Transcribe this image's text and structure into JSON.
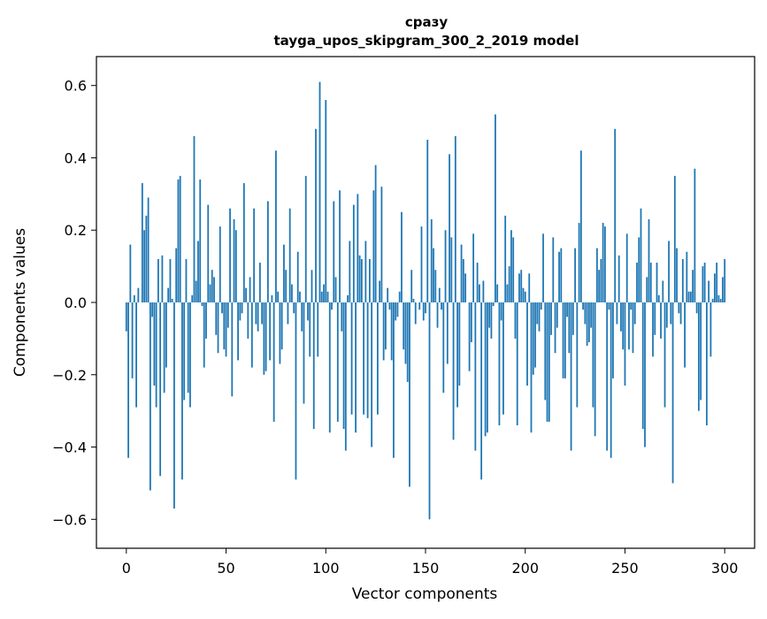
{
  "chart_data": {
    "type": "bar",
    "title_line1": "сразу",
    "title_line2": "tayga_upos_skipgram_300_2_2019 model",
    "xlabel": "Vector components",
    "ylabel": "Components values",
    "xlim": [
      -15,
      315
    ],
    "ylim": [
      -0.68,
      0.68
    ],
    "x_ticks": [
      0,
      50,
      100,
      150,
      200,
      250,
      300
    ],
    "y_ticks": [
      -0.6,
      -0.4,
      -0.2,
      0.0,
      0.2,
      0.4,
      0.6
    ],
    "x_tick_labels": [
      "0",
      "50",
      "100",
      "150",
      "200",
      "250",
      "300"
    ],
    "y_tick_labels": [
      "−0.6",
      "−0.4",
      "−0.2",
      "0.0",
      "0.2",
      "0.4",
      "0.6"
    ],
    "bar_color": "#1f77b4",
    "grid": false,
    "values": [
      -0.08,
      -0.43,
      0.16,
      -0.21,
      0.02,
      -0.29,
      0.04,
      0.0,
      0.33,
      0.2,
      0.24,
      0.29,
      -0.52,
      -0.04,
      -0.23,
      -0.29,
      0.12,
      -0.48,
      0.13,
      -0.25,
      -0.18,
      0.04,
      0.12,
      0.01,
      -0.57,
      0.15,
      0.34,
      0.35,
      -0.49,
      -0.27,
      0.12,
      -0.25,
      -0.29,
      0.02,
      0.46,
      0.06,
      0.17,
      0.34,
      -0.01,
      -0.18,
      -0.1,
      0.27,
      0.05,
      0.09,
      0.07,
      -0.09,
      -0.14,
      0.21,
      -0.03,
      -0.13,
      -0.15,
      -0.07,
      0.26,
      -0.26,
      0.23,
      0.2,
      -0.16,
      -0.05,
      -0.03,
      0.33,
      0.04,
      -0.1,
      0.07,
      -0.18,
      0.26,
      -0.06,
      -0.08,
      0.11,
      -0.06,
      -0.2,
      -0.19,
      0.28,
      -0.16,
      0.02,
      -0.33,
      0.42,
      0.03,
      -0.17,
      -0.13,
      0.16,
      0.09,
      -0.06,
      0.26,
      0.05,
      -0.03,
      -0.49,
      0.14,
      0.03,
      -0.08,
      -0.28,
      0.35,
      -0.05,
      -0.15,
      0.09,
      -0.35,
      0.48,
      -0.15,
      0.61,
      0.03,
      0.05,
      0.56,
      0.03,
      -0.36,
      -0.02,
      0.28,
      0.07,
      -0.33,
      0.31,
      -0.08,
      -0.35,
      -0.41,
      0.02,
      0.17,
      -0.31,
      0.27,
      -0.36,
      0.3,
      0.13,
      0.12,
      -0.31,
      0.17,
      -0.32,
      0.12,
      -0.4,
      0.31,
      0.38,
      -0.31,
      0.06,
      0.32,
      -0.16,
      -0.13,
      0.04,
      -0.02,
      -0.16,
      -0.43,
      -0.05,
      -0.04,
      0.03,
      0.25,
      -0.13,
      -0.17,
      -0.22,
      -0.51,
      0.09,
      0.01,
      -0.06,
      0.0,
      -0.02,
      0.21,
      -0.05,
      -0.03,
      0.45,
      -0.6,
      0.23,
      0.15,
      0.09,
      -0.07,
      0.04,
      -0.02,
      -0.25,
      0.2,
      -0.17,
      0.41,
      0.18,
      -0.38,
      0.46,
      -0.29,
      -0.23,
      0.16,
      0.12,
      0.08,
      0.0,
      -0.19,
      -0.11,
      0.19,
      -0.41,
      0.11,
      0.05,
      -0.49,
      0.06,
      -0.37,
      -0.36,
      -0.07,
      -0.1,
      -0.01,
      0.52,
      0.05,
      -0.34,
      -0.05,
      -0.31,
      0.24,
      0.05,
      0.1,
      0.2,
      0.18,
      -0.1,
      -0.34,
      0.08,
      0.09,
      0.04,
      0.03,
      -0.23,
      0.08,
      -0.36,
      -0.2,
      -0.18,
      -0.06,
      -0.08,
      -0.02,
      0.19,
      -0.27,
      -0.33,
      -0.33,
      -0.09,
      0.18,
      -0.14,
      -0.07,
      0.14,
      0.15,
      -0.21,
      -0.21,
      -0.04,
      -0.14,
      -0.41,
      -0.09,
      0.15,
      -0.29,
      0.22,
      0.42,
      -0.02,
      -0.06,
      -0.12,
      -0.11,
      -0.07,
      -0.29,
      -0.37,
      0.15,
      0.09,
      0.12,
      0.22,
      0.21,
      -0.41,
      -0.02,
      -0.43,
      -0.21,
      0.48,
      -0.06,
      0.13,
      -0.08,
      -0.13,
      -0.23,
      0.19,
      -0.13,
      -0.02,
      -0.14,
      -0.06,
      0.11,
      0.18,
      0.26,
      -0.35,
      -0.4,
      0.07,
      0.23,
      0.11,
      -0.15,
      -0.09,
      0.11,
      0.02,
      -0.1,
      0.06,
      -0.29,
      -0.07,
      0.17,
      -0.06,
      -0.5,
      0.35,
      0.15,
      -0.03,
      -0.06,
      0.12,
      -0.18,
      0.14,
      0.03,
      0.03,
      0.09,
      0.37,
      -0.03,
      -0.3,
      -0.27,
      0.1,
      0.11,
      -0.34,
      0.06,
      -0.15,
      0.01,
      0.08,
      0.11,
      0.02,
      0.01,
      0.07,
      0.12
    ]
  }
}
